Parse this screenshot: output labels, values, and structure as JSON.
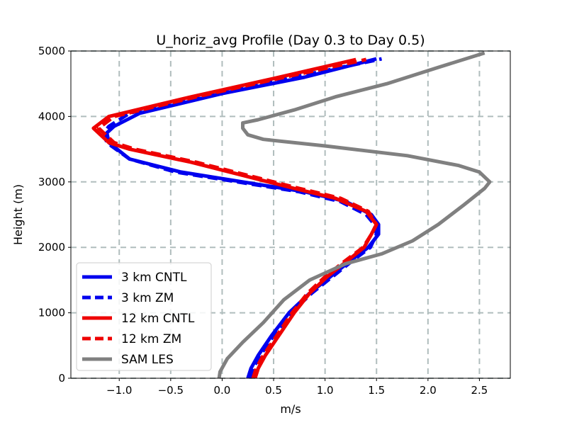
{
  "chart_data": {
    "type": "line",
    "title": "U_horiz_avg Profile (Day 0.3 to Day 0.5)",
    "xlabel": "m/s",
    "ylabel": "Height (m)",
    "xlim": [
      -1.47,
      2.8
    ],
    "ylim": [
      0,
      5000
    ],
    "xticks": [
      -1.0,
      -0.5,
      0.0,
      0.5,
      1.0,
      1.5,
      2.0,
      2.5
    ],
    "xtick_labels": [
      "−1.0",
      "−0.5",
      "0.0",
      "0.5",
      "1.0",
      "1.5",
      "2.0",
      "2.5"
    ],
    "yticks": [
      0,
      1000,
      2000,
      3000,
      4000,
      5000
    ],
    "ytick_labels": [
      "0",
      "1000",
      "2000",
      "3000",
      "4000",
      "5000"
    ],
    "grid": true,
    "legend_position": "lower-left",
    "series": [
      {
        "name": "3 km CNTL",
        "color": "#0000ee",
        "dash": "solid",
        "points": [
          [
            0.25,
            0
          ],
          [
            0.28,
            150
          ],
          [
            0.35,
            350
          ],
          [
            0.48,
            650
          ],
          [
            0.65,
            1000
          ],
          [
            0.85,
            1300
          ],
          [
            1.05,
            1550
          ],
          [
            1.25,
            1800
          ],
          [
            1.42,
            2000
          ],
          [
            1.52,
            2200
          ],
          [
            1.52,
            2350
          ],
          [
            1.45,
            2500
          ],
          [
            1.2,
            2700
          ],
          [
            0.8,
            2850
          ],
          [
            0.2,
            3000
          ],
          [
            -0.4,
            3150
          ],
          [
            -0.9,
            3350
          ],
          [
            -1.1,
            3600
          ],
          [
            -1.12,
            3750
          ],
          [
            -1.05,
            3850
          ],
          [
            -0.8,
            4050
          ],
          [
            0.0,
            4350
          ],
          [
            0.8,
            4600
          ],
          [
            1.5,
            4880
          ]
        ]
      },
      {
        "name": "3 km ZM",
        "color": "#0000ee",
        "dash": "dashed",
        "points": [
          [
            0.27,
            0
          ],
          [
            0.3,
            150
          ],
          [
            0.37,
            350
          ],
          [
            0.5,
            650
          ],
          [
            0.67,
            1000
          ],
          [
            0.87,
            1300
          ],
          [
            1.07,
            1550
          ],
          [
            1.27,
            1800
          ],
          [
            1.44,
            2000
          ],
          [
            1.5,
            2200
          ],
          [
            1.48,
            2350
          ],
          [
            1.4,
            2500
          ],
          [
            1.15,
            2700
          ],
          [
            0.75,
            2850
          ],
          [
            0.15,
            3000
          ],
          [
            -0.45,
            3150
          ],
          [
            -0.9,
            3350
          ],
          [
            -1.12,
            3600
          ],
          [
            -1.15,
            3750
          ],
          [
            -1.1,
            3850
          ],
          [
            -0.9,
            4050
          ],
          [
            -0.1,
            4350
          ],
          [
            0.7,
            4600
          ],
          [
            1.55,
            4880
          ]
        ]
      },
      {
        "name": "12 km CNTL",
        "color": "#ee0000",
        "dash": "solid",
        "points": [
          [
            0.32,
            0
          ],
          [
            0.35,
            150
          ],
          [
            0.42,
            350
          ],
          [
            0.55,
            650
          ],
          [
            0.7,
            1000
          ],
          [
            0.85,
            1300
          ],
          [
            1.02,
            1550
          ],
          [
            1.22,
            1800
          ],
          [
            1.38,
            2000
          ],
          [
            1.45,
            2200
          ],
          [
            1.5,
            2350
          ],
          [
            1.4,
            2550
          ],
          [
            1.1,
            2750
          ],
          [
            0.7,
            2900
          ],
          [
            0.2,
            3100
          ],
          [
            -0.3,
            3300
          ],
          [
            -0.9,
            3500
          ],
          [
            -1.1,
            3600
          ],
          [
            -1.25,
            3820
          ],
          [
            -1.1,
            4000
          ],
          [
            -0.3,
            4300
          ],
          [
            0.5,
            4580
          ],
          [
            1.3,
            4870
          ]
        ]
      },
      {
        "name": "12 km ZM",
        "color": "#ee0000",
        "dash": "dashed",
        "points": [
          [
            0.3,
            0
          ],
          [
            0.33,
            150
          ],
          [
            0.4,
            350
          ],
          [
            0.53,
            650
          ],
          [
            0.68,
            1000
          ],
          [
            0.83,
            1300
          ],
          [
            1.0,
            1550
          ],
          [
            1.2,
            1800
          ],
          [
            1.37,
            2000
          ],
          [
            1.45,
            2200
          ],
          [
            1.5,
            2350
          ],
          [
            1.42,
            2550
          ],
          [
            1.15,
            2750
          ],
          [
            0.75,
            2900
          ],
          [
            0.25,
            3100
          ],
          [
            -0.25,
            3300
          ],
          [
            -0.85,
            3500
          ],
          [
            -1.05,
            3600
          ],
          [
            -1.2,
            3820
          ],
          [
            -1.05,
            4000
          ],
          [
            -0.25,
            4300
          ],
          [
            0.55,
            4580
          ],
          [
            1.4,
            4870
          ]
        ]
      },
      {
        "name": "SAM LES",
        "color": "#808080",
        "dash": "solid",
        "points": [
          [
            -0.03,
            0
          ],
          [
            -0.02,
            100
          ],
          [
            0.05,
            300
          ],
          [
            0.2,
            550
          ],
          [
            0.4,
            850
          ],
          [
            0.6,
            1200
          ],
          [
            0.85,
            1500
          ],
          [
            1.2,
            1750
          ],
          [
            1.55,
            1900
          ],
          [
            1.85,
            2100
          ],
          [
            2.1,
            2350
          ],
          [
            2.35,
            2650
          ],
          [
            2.55,
            2900
          ],
          [
            2.6,
            3000
          ],
          [
            2.5,
            3150
          ],
          [
            2.3,
            3250
          ],
          [
            1.8,
            3400
          ],
          [
            1.0,
            3550
          ],
          [
            0.4,
            3650
          ],
          [
            0.25,
            3720
          ],
          [
            0.2,
            3820
          ],
          [
            0.2,
            3900
          ],
          [
            0.35,
            3950
          ],
          [
            0.7,
            4100
          ],
          [
            1.1,
            4300
          ],
          [
            1.6,
            4500
          ],
          [
            2.1,
            4750
          ],
          [
            2.55,
            4970
          ]
        ]
      }
    ]
  }
}
